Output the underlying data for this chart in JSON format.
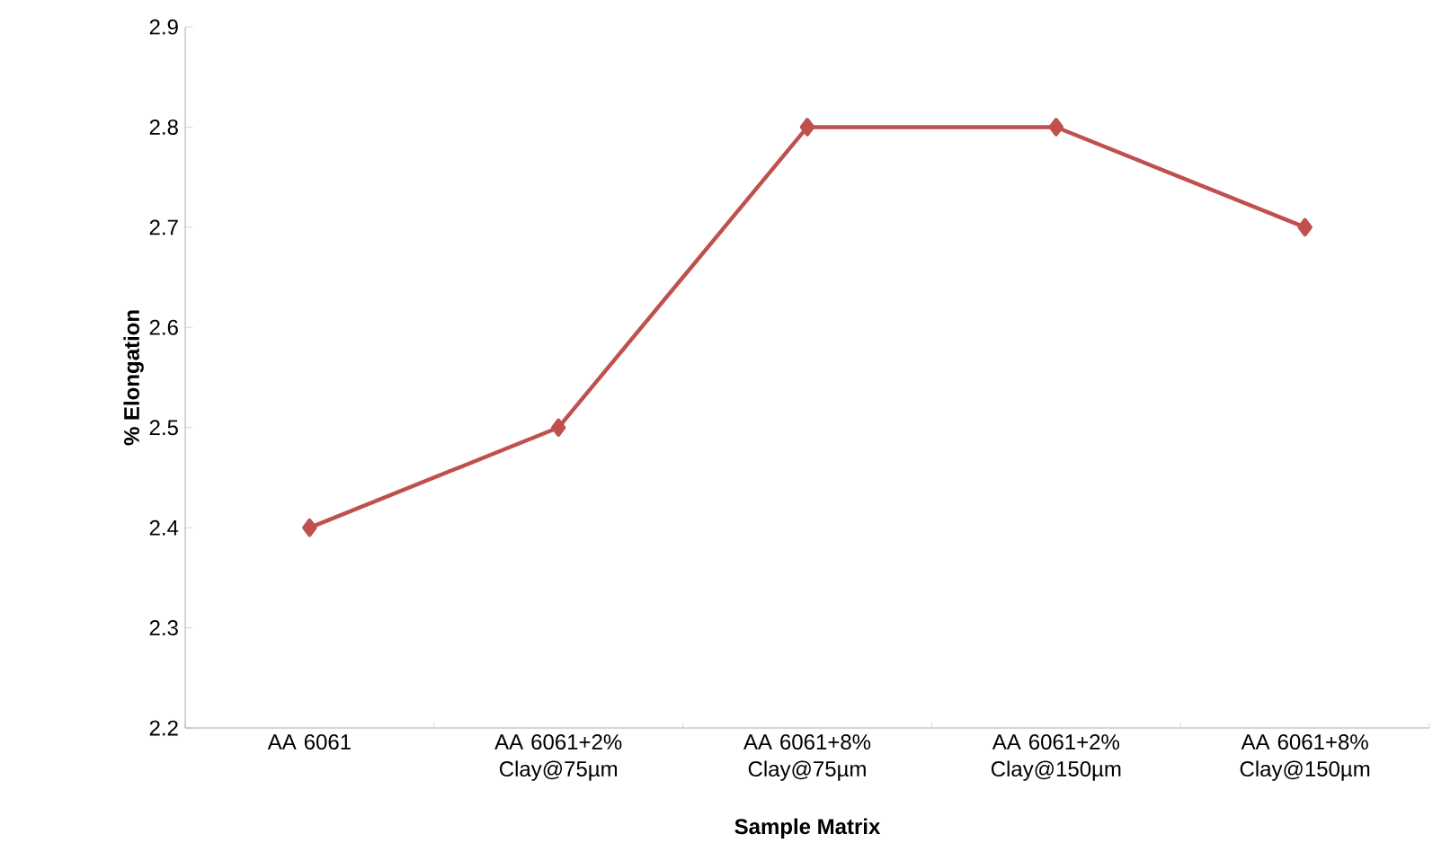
{
  "chart_data": {
    "type": "line",
    "xlabel": "Sample Matrix",
    "ylabel": "% Elongation",
    "categories": [
      "AA 6061",
      "AA 6061+2% Clay@75µm",
      "AA 6061+8% Clay@75µm",
      "AA 6061+2% Clay@150µm",
      "AA 6061+8% Clay@150µm"
    ],
    "series": [
      {
        "color": "#c0504d",
        "values": [
          2.4,
          2.5,
          2.8,
          2.8,
          2.7
        ]
      }
    ],
    "ylim": [
      2.2,
      2.9
    ],
    "yticks": [
      2.2,
      2.3,
      2.4,
      2.5,
      2.6,
      2.7,
      2.8,
      2.9
    ],
    "marker": "diamond",
    "line_style": "solid",
    "grid": false
  }
}
